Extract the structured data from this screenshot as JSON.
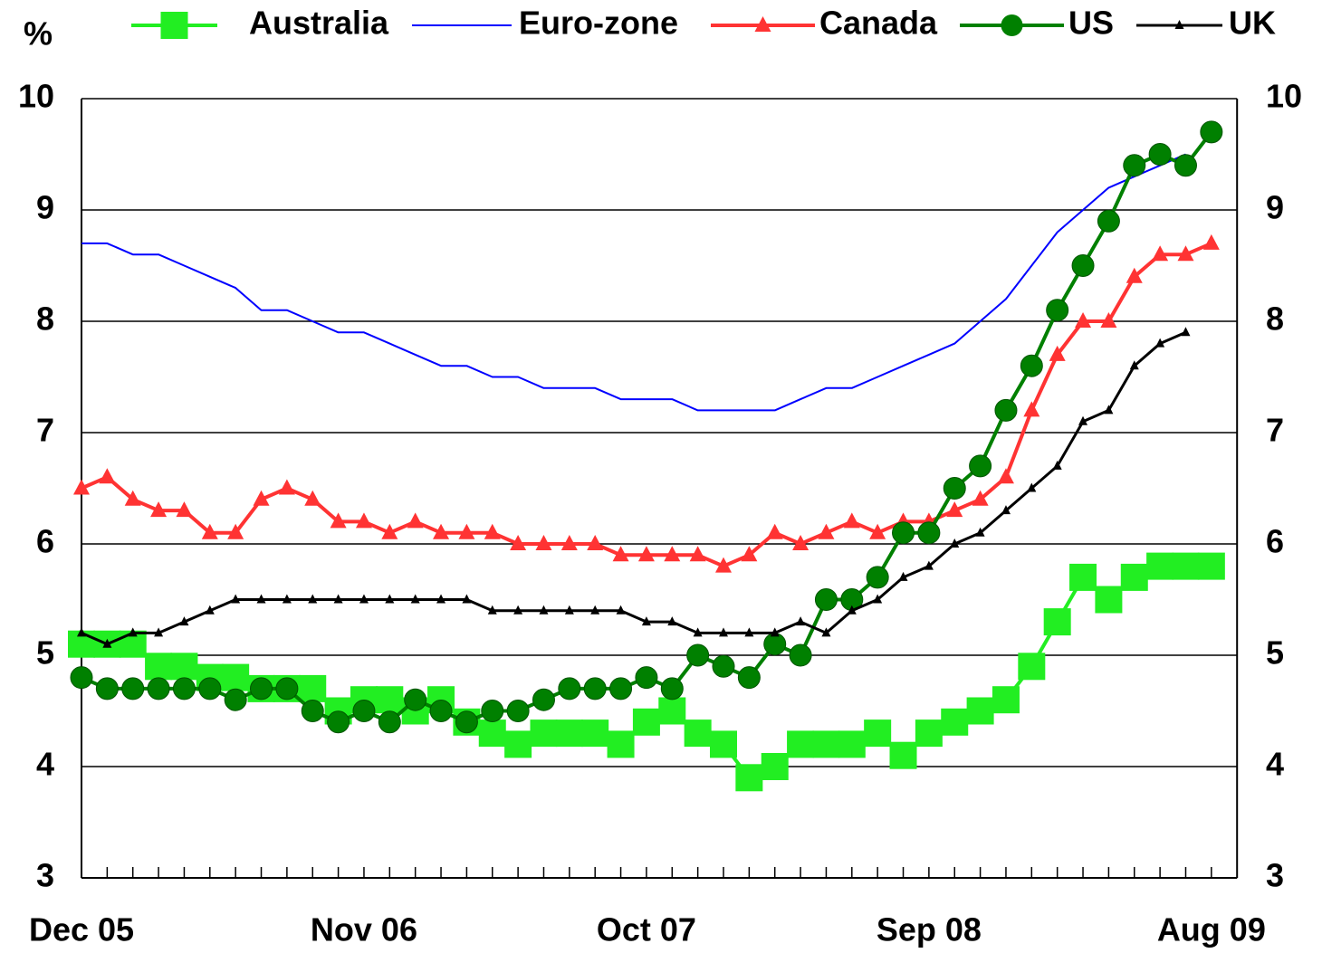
{
  "chart_data": {
    "type": "line",
    "y_label": "%",
    "categories": [
      "Dec 05",
      null,
      null,
      null,
      null,
      null,
      null,
      null,
      null,
      null,
      null,
      "Nov 06",
      null,
      null,
      null,
      null,
      null,
      null,
      null,
      null,
      null,
      null,
      "Oct 07",
      null,
      null,
      null,
      null,
      null,
      null,
      null,
      null,
      null,
      null,
      "Sep 08",
      null,
      null,
      null,
      null,
      null,
      null,
      null,
      null,
      null,
      null,
      "Aug 09"
    ],
    "ylim": [
      3,
      10
    ],
    "yticks": [
      3,
      4,
      5,
      6,
      7,
      8,
      9,
      10
    ],
    "grid": true,
    "series": [
      {
        "name": "Australia",
        "color": "#22ee22",
        "marker": "square",
        "values": [
          5.1,
          5.1,
          5.1,
          4.9,
          4.9,
          4.8,
          4.8,
          4.7,
          4.7,
          4.7,
          4.5,
          4.6,
          4.6,
          4.5,
          4.6,
          4.4,
          4.3,
          4.2,
          4.3,
          4.3,
          4.3,
          4.2,
          4.4,
          4.5,
          4.3,
          4.2,
          3.9,
          4.0,
          4.2,
          4.2,
          4.2,
          4.3,
          4.1,
          4.3,
          4.4,
          4.5,
          4.6,
          4.9,
          5.3,
          5.7,
          5.5,
          5.7,
          5.8,
          5.8,
          5.8
        ]
      },
      {
        "name": "Euro-zone",
        "color": "#0000ff",
        "marker": "none",
        "values": [
          8.7,
          8.7,
          8.6,
          8.6,
          8.5,
          8.4,
          8.3,
          8.1,
          8.1,
          8.0,
          7.9,
          7.9,
          7.8,
          7.7,
          7.6,
          7.6,
          7.5,
          7.5,
          7.4,
          7.4,
          7.4,
          7.3,
          7.3,
          7.3,
          7.2,
          7.2,
          7.2,
          7.2,
          7.3,
          7.4,
          7.4,
          7.5,
          7.6,
          7.7,
          7.8,
          8.0,
          8.2,
          8.5,
          8.8,
          9.0,
          9.2,
          9.3,
          9.4,
          9.5,
          null
        ]
      },
      {
        "name": "Canada",
        "color": "#ff3333",
        "marker": "triangle",
        "values": [
          6.5,
          6.6,
          6.4,
          6.3,
          6.3,
          6.1,
          6.1,
          6.4,
          6.5,
          6.4,
          6.2,
          6.2,
          6.1,
          6.2,
          6.1,
          6.1,
          6.1,
          6.0,
          6.0,
          6.0,
          6.0,
          5.9,
          5.9,
          5.9,
          5.9,
          5.8,
          5.9,
          6.1,
          6.0,
          6.1,
          6.2,
          6.1,
          6.2,
          6.2,
          6.3,
          6.4,
          6.6,
          7.2,
          7.7,
          8.0,
          8.0,
          8.4,
          8.6,
          8.6,
          8.7
        ]
      },
      {
        "name": "US",
        "color": "#008000",
        "marker": "circle",
        "values": [
          4.8,
          4.7,
          4.7,
          4.7,
          4.7,
          4.7,
          4.6,
          4.7,
          4.7,
          4.5,
          4.4,
          4.5,
          4.4,
          4.6,
          4.5,
          4.4,
          4.5,
          4.5,
          4.6,
          4.7,
          4.7,
          4.7,
          4.8,
          4.7,
          5.0,
          4.9,
          4.8,
          5.1,
          5.0,
          5.5,
          5.5,
          5.7,
          6.1,
          6.1,
          6.5,
          6.7,
          7.2,
          7.6,
          8.1,
          8.5,
          8.9,
          9.4,
          9.5,
          9.4,
          9.7
        ]
      },
      {
        "name": "UK",
        "color": "#000000",
        "marker": "small-triangle",
        "values": [
          5.2,
          5.1,
          5.2,
          5.2,
          5.3,
          5.4,
          5.5,
          5.5,
          5.5,
          5.5,
          5.5,
          5.5,
          5.5,
          5.5,
          5.5,
          5.5,
          5.4,
          5.4,
          5.4,
          5.4,
          5.4,
          5.4,
          5.3,
          5.3,
          5.2,
          5.2,
          5.2,
          5.2,
          5.3,
          5.2,
          5.4,
          5.5,
          5.7,
          5.8,
          6.0,
          6.1,
          6.3,
          6.5,
          6.7,
          7.1,
          7.2,
          7.6,
          7.8,
          7.9,
          null
        ]
      }
    ]
  }
}
